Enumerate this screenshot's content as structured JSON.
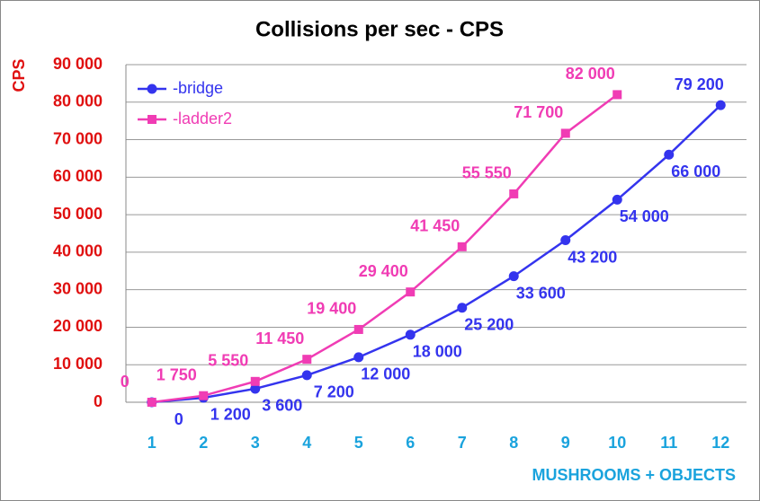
{
  "chart_data": {
    "type": "line",
    "title": "Collisions per sec - CPS",
    "y_label": "CPS",
    "x_label": "MUSHROOMS + OBJECTS",
    "categories": [
      "1",
      "2",
      "3",
      "4",
      "5",
      "6",
      "7",
      "8",
      "9",
      "10",
      "11",
      "12"
    ],
    "series": [
      {
        "name": "-bridge",
        "color": "#3434ee",
        "marker": "circle",
        "values": [
          0,
          1200,
          3600,
          7200,
          12000,
          18000,
          25200,
          33600,
          43200,
          54000,
          66000,
          79200
        ],
        "value_labels": [
          "0",
          "1 200",
          "3 600",
          "7 200",
          "12 000",
          "18 000",
          "25 200",
          "33 600",
          "43 200",
          "54 000",
          "66 000",
          "79 200"
        ]
      },
      {
        "name": "-ladder2",
        "color": "#f03cb4",
        "marker": "square",
        "values": [
          0,
          1750,
          5550,
          11450,
          19400,
          29400,
          41450,
          55550,
          71700,
          82000,
          null,
          null
        ],
        "value_labels": [
          "0",
          "1 750",
          "5 550",
          "11 450",
          "19 400",
          "29 400",
          "41 450",
          "55 550",
          "71 700",
          "82 000",
          null,
          null
        ]
      }
    ],
    "ylim": [
      0,
      90000
    ],
    "yticks": [
      0,
      {
        "value": 10000,
        "label": "10 000"
      },
      {
        "value": 20000,
        "label": "20 000"
      },
      {
        "value": 30000,
        "label": "30 000"
      },
      {
        "value": 40000,
        "label": "40 000"
      },
      {
        "value": 50000,
        "label": "50 000"
      },
      {
        "value": 60000,
        "label": "60 000"
      },
      {
        "value": 70000,
        "label": "70 000"
      },
      {
        "value": 80000,
        "label": "80 000"
      },
      {
        "value": 90000,
        "label": "90 000"
      }
    ],
    "grid": true,
    "legend": "upper left"
  }
}
